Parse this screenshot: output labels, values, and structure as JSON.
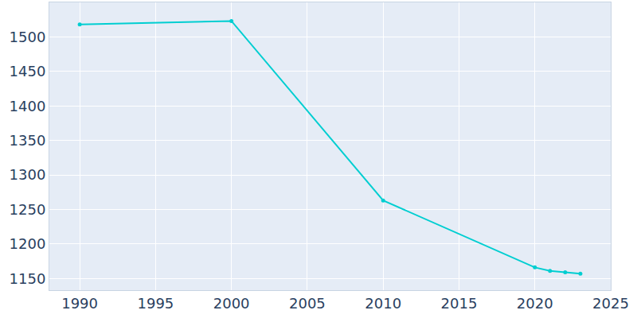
{
  "chart_data": {
    "type": "line",
    "x": [
      1990,
      2000,
      2010,
      2020,
      2021,
      2022,
      2023
    ],
    "values": [
      1518,
      1523,
      1263,
      1166,
      1161,
      1159,
      1157
    ],
    "color": "#00CED1",
    "marker": "circle",
    "xlim": [
      1988,
      2025
    ],
    "xticks": [
      1990,
      1995,
      2000,
      2005,
      2010,
      2015,
      2020,
      2025
    ],
    "ylim": [
      1133,
      1550
    ],
    "yticks": [
      1150,
      1200,
      1250,
      1300,
      1350,
      1400,
      1450,
      1500
    ],
    "grid": true
  }
}
